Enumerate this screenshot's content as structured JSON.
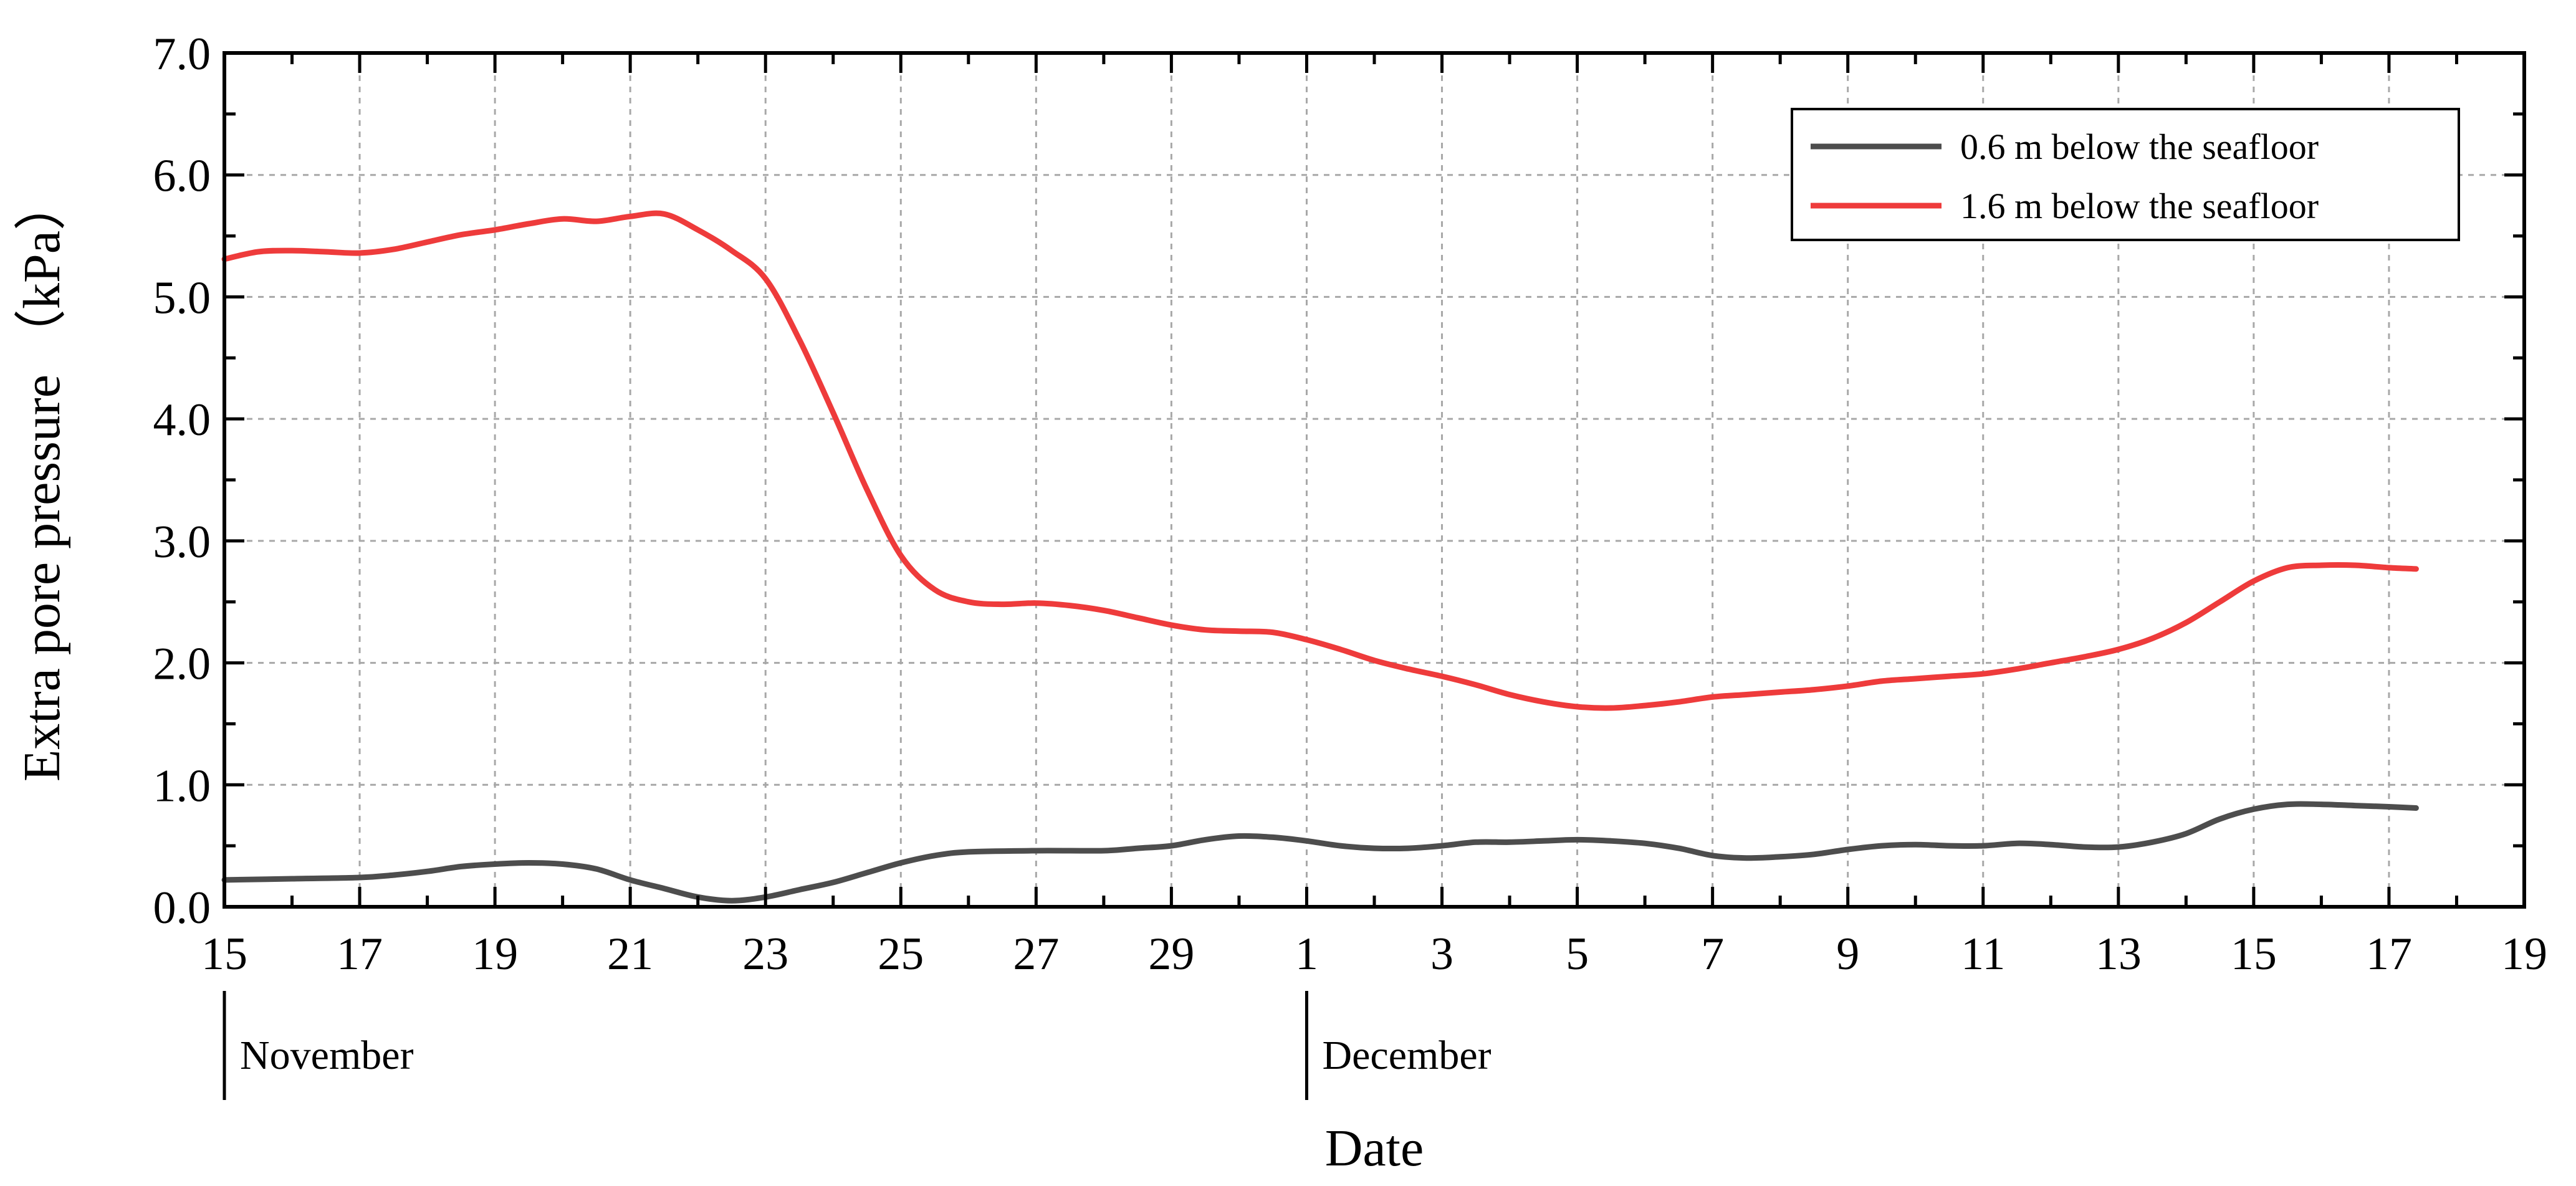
{
  "chart_data": {
    "type": "line",
    "xlabel": "Date",
    "ylabel": "Extra pore pressure （kPa）",
    "x_ticks": [
      "15",
      "17",
      "19",
      "21",
      "23",
      "25",
      "27",
      "29",
      "1",
      "3",
      "5",
      "7",
      "9",
      "11",
      "13",
      "15",
      "17",
      "19"
    ],
    "x_tick_dates": [
      "11-15",
      "11-17",
      "11-19",
      "11-21",
      "11-23",
      "11-25",
      "11-27",
      "11-29",
      "12-01",
      "12-03",
      "12-05",
      "12-07",
      "12-09",
      "12-11",
      "12-13",
      "12-15",
      "12-17",
      "12-19"
    ],
    "month_labels": [
      {
        "text": "November",
        "date": "11-15"
      },
      {
        "text": "December",
        "date": "12-01"
      }
    ],
    "xlim": [
      "11-15",
      "12-19"
    ],
    "y_ticks": [
      "0.0",
      "1.0",
      "2.0",
      "3.0",
      "4.0",
      "5.0",
      "6.0",
      "7.0"
    ],
    "ylim": [
      0,
      7
    ],
    "grid": true,
    "legend": "top-right",
    "series": [
      {
        "name": "0.6 m below the seafloor",
        "color": "#4d4d4d",
        "points": [
          [
            "11-15",
            0.22
          ],
          [
            "11-16",
            0.23
          ],
          [
            "11-17",
            0.24
          ],
          [
            "11-17.5",
            0.26
          ],
          [
            "11-18",
            0.29
          ],
          [
            "11-18.5",
            0.33
          ],
          [
            "11-19",
            0.35
          ],
          [
            "11-19.5",
            0.36
          ],
          [
            "11-20",
            0.35
          ],
          [
            "11-20.5",
            0.31
          ],
          [
            "11-21",
            0.22
          ],
          [
            "11-21.5",
            0.15
          ],
          [
            "11-22",
            0.08
          ],
          [
            "11-22.5",
            0.05
          ],
          [
            "11-23",
            0.08
          ],
          [
            "11-23.5",
            0.14
          ],
          [
            "11-24",
            0.2
          ],
          [
            "11-24.5",
            0.28
          ],
          [
            "11-25",
            0.36
          ],
          [
            "11-25.5",
            0.42
          ],
          [
            "11-26",
            0.45
          ],
          [
            "11-27",
            0.46
          ],
          [
            "11-28",
            0.46
          ],
          [
            "11-28.5",
            0.48
          ],
          [
            "11-29",
            0.5
          ],
          [
            "11-29.5",
            0.55
          ],
          [
            "11-30",
            0.58
          ],
          [
            "11-30.5",
            0.57
          ],
          [
            "12-01",
            0.54
          ],
          [
            "12-01.5",
            0.5
          ],
          [
            "12-02",
            0.48
          ],
          [
            "12-02.5",
            0.48
          ],
          [
            "12-03",
            0.5
          ],
          [
            "12-03.5",
            0.53
          ],
          [
            "12-04",
            0.53
          ],
          [
            "12-04.5",
            0.54
          ],
          [
            "12-05",
            0.55
          ],
          [
            "12-05.5",
            0.54
          ],
          [
            "12-06",
            0.52
          ],
          [
            "12-06.5",
            0.48
          ],
          [
            "12-07",
            0.42
          ],
          [
            "12-07.5",
            0.4
          ],
          [
            "12-08",
            0.41
          ],
          [
            "12-08.5",
            0.43
          ],
          [
            "12-09",
            0.47
          ],
          [
            "12-09.5",
            0.5
          ],
          [
            "12-10",
            0.51
          ],
          [
            "12-10.5",
            0.5
          ],
          [
            "12-11",
            0.5
          ],
          [
            "12-11.5",
            0.52
          ],
          [
            "12-12",
            0.51
          ],
          [
            "12-12.5",
            0.49
          ],
          [
            "12-13",
            0.49
          ],
          [
            "12-13.5",
            0.53
          ],
          [
            "12-14",
            0.6
          ],
          [
            "12-14.5",
            0.72
          ],
          [
            "12-15",
            0.8
          ],
          [
            "12-15.5",
            0.84
          ],
          [
            "12-16",
            0.84
          ],
          [
            "12-16.5",
            0.83
          ],
          [
            "12-17",
            0.82
          ],
          [
            "12-17.4",
            0.81
          ]
        ]
      },
      {
        "name": "1.6 m below the seafloor",
        "color": "#ee3b3b",
        "points": [
          [
            "11-15",
            5.31
          ],
          [
            "11-15.5",
            5.37
          ],
          [
            "11-16",
            5.38
          ],
          [
            "11-16.5",
            5.37
          ],
          [
            "11-17",
            5.36
          ],
          [
            "11-17.5",
            5.39
          ],
          [
            "11-18",
            5.45
          ],
          [
            "11-18.5",
            5.51
          ],
          [
            "11-19",
            5.55
          ],
          [
            "11-19.5",
            5.6
          ],
          [
            "11-20",
            5.64
          ],
          [
            "11-20.5",
            5.62
          ],
          [
            "11-21",
            5.66
          ],
          [
            "11-21.5",
            5.68
          ],
          [
            "11-22",
            5.55
          ],
          [
            "11-22.5",
            5.38
          ],
          [
            "11-23",
            5.15
          ],
          [
            "11-23.5",
            4.65
          ],
          [
            "11-24",
            4.05
          ],
          [
            "11-24.5",
            3.42
          ],
          [
            "11-25",
            2.88
          ],
          [
            "11-25.5",
            2.6
          ],
          [
            "11-26",
            2.5
          ],
          [
            "11-26.5",
            2.48
          ],
          [
            "11-27",
            2.49
          ],
          [
            "11-27.5",
            2.47
          ],
          [
            "11-28",
            2.43
          ],
          [
            "11-28.5",
            2.37
          ],
          [
            "11-29",
            2.31
          ],
          [
            "11-29.5",
            2.27
          ],
          [
            "11-30",
            2.26
          ],
          [
            "11-30.5",
            2.25
          ],
          [
            "12-01",
            2.19
          ],
          [
            "12-01.5",
            2.11
          ],
          [
            "12-02",
            2.02
          ],
          [
            "12-02.5",
            1.95
          ],
          [
            "12-03",
            1.89
          ],
          [
            "12-03.5",
            1.82
          ],
          [
            "12-04",
            1.74
          ],
          [
            "12-04.5",
            1.68
          ],
          [
            "12-05",
            1.64
          ],
          [
            "12-05.5",
            1.63
          ],
          [
            "12-06",
            1.65
          ],
          [
            "12-06.5",
            1.68
          ],
          [
            "12-07",
            1.72
          ],
          [
            "12-07.5",
            1.74
          ],
          [
            "12-08",
            1.76
          ],
          [
            "12-08.5",
            1.78
          ],
          [
            "12-09",
            1.81
          ],
          [
            "12-09.5",
            1.85
          ],
          [
            "12-10",
            1.87
          ],
          [
            "12-10.5",
            1.89
          ],
          [
            "12-11",
            1.91
          ],
          [
            "12-11.5",
            1.95
          ],
          [
            "12-12",
            2.0
          ],
          [
            "12-12.5",
            2.05
          ],
          [
            "12-13",
            2.11
          ],
          [
            "12-13.5",
            2.2
          ],
          [
            "12-14",
            2.33
          ],
          [
            "12-14.5",
            2.5
          ],
          [
            "12-15",
            2.67
          ],
          [
            "12-15.5",
            2.78
          ],
          [
            "12-16",
            2.8
          ],
          [
            "12-16.5",
            2.8
          ],
          [
            "12-17",
            2.78
          ],
          [
            "12-17.4",
            2.77
          ]
        ]
      }
    ]
  }
}
